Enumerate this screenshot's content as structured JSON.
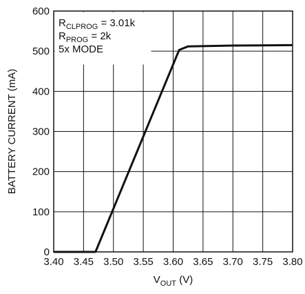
{
  "chart_data": {
    "type": "line",
    "xlabel": {
      "main": "V",
      "sub": "OUT",
      "suffix": " (V)"
    },
    "ylabel": "BATTERY CURRENT (mA)",
    "xlim": [
      3.4,
      3.8
    ],
    "ylim": [
      0,
      600
    ],
    "x_ticks": [
      "3.40",
      "3.45",
      "3.50",
      "3.55",
      "3.60",
      "3.65",
      "3.70",
      "3.75",
      "3.80"
    ],
    "y_ticks": [
      "0",
      "100",
      "200",
      "300",
      "400",
      "500",
      "600"
    ],
    "grid": true,
    "annotations": [
      {
        "main": "R",
        "sub": "CLPROG",
        "suffix": " = 3.01k"
      },
      {
        "main": "R",
        "sub": "PROG",
        "suffix": " = 2k"
      },
      {
        "main": "5x MODE",
        "sub": "",
        "suffix": ""
      }
    ],
    "series": [
      {
        "x": [
          3.4,
          3.47,
          3.61,
          3.625,
          3.7,
          3.8
        ],
        "y": [
          0,
          0,
          503,
          512,
          514,
          515
        ]
      }
    ]
  }
}
